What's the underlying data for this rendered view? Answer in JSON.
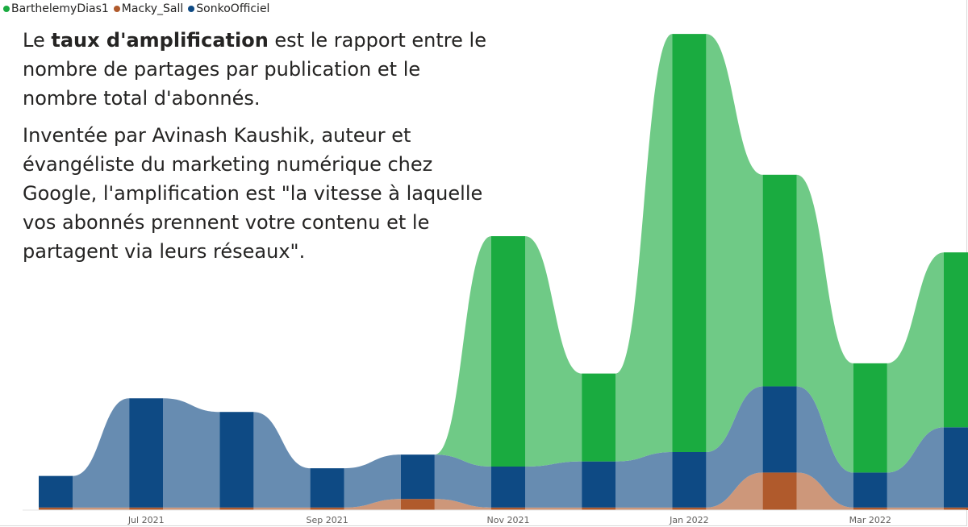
{
  "chart_data": {
    "type": "ribbon",
    "categories": [
      "Jun 2021",
      "Jul 2021",
      "Aug 2021",
      "Sep 2021",
      "Oct 2021",
      "Nov 2021",
      "Dec 2021",
      "Jan 2022",
      "Feb 2022",
      "Mar 2022",
      "Apr 2022"
    ],
    "x_tick_labels": [
      {
        "label": "Jul 2021",
        "index": 1
      },
      {
        "label": "Sep 2021",
        "index": 3
      },
      {
        "label": "Nov 2021",
        "index": 5
      },
      {
        "label": "Jan 2022",
        "index": 7
      },
      {
        "label": "Mar 2022",
        "index": 9
      }
    ],
    "series": [
      {
        "name": "BarthelemyDias1",
        "color": "#1aab40",
        "values": [
          0,
          0,
          0,
          0,
          0,
          270,
          103,
          490,
          248,
          128,
          205
        ]
      },
      {
        "name": "Macky_Sall",
        "color": "#b05a2c",
        "values": [
          3,
          3,
          3,
          3,
          13,
          3,
          3,
          3,
          44,
          3,
          3
        ]
      },
      {
        "name": "SonkoOfficiel",
        "color": "#0e4a84",
        "values": [
          37,
          128,
          112,
          46,
          52,
          48,
          54,
          65,
          101,
          41,
          94
        ]
      }
    ],
    "stack_order_bottom_to_top": [
      "Macky_Sall",
      "SonkoOfficiel",
      "BarthelemyDias1"
    ],
    "ylim": [
      0,
      560
    ],
    "grid": false
  },
  "legend": [
    {
      "name": "BarthelemyDias1",
      "color": "#1aab40"
    },
    {
      "name": "Macky_Sall",
      "color": "#b05a2c"
    },
    {
      "name": "SonkoOfficiel",
      "color": "#0e4a84"
    }
  ],
  "annotation": {
    "p1_before": "Le ",
    "p1_bold": "taux d'amplification",
    "p1_after": " est le rapport entre le nombre de partages par publication et le nombre total d'abonnés.",
    "p2": "Inventée par Avinash Kaushik, auteur et évangéliste du marketing numérique chez Google, l'amplification est \"la vitesse à laquelle vos abonnés prennent votre contenu et le partagent via leurs réseaux\"."
  }
}
